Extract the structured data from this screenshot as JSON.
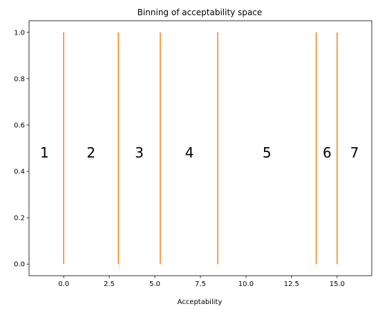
{
  "chart_data": {
    "type": "line",
    "title": "Binning of acceptability space",
    "xlabel": "Acceptability",
    "ylabel": "",
    "xlim": [
      -1.9,
      16.9
    ],
    "ylim": [
      -0.05,
      1.05
    ],
    "x_ticks": [
      0.0,
      2.5,
      5.0,
      7.5,
      10.0,
      12.5,
      15.0
    ],
    "x_tick_labels": [
      "0.0",
      "2.5",
      "5.0",
      "7.5",
      "10.0",
      "12.5",
      "15.0"
    ],
    "y_ticks": [
      0.0,
      0.2,
      0.4,
      0.6,
      0.8,
      1.0
    ],
    "y_tick_labels": [
      "0.0",
      "0.2",
      "0.4",
      "0.6",
      "0.8",
      "1.0"
    ],
    "grid": false,
    "line_color": "#ff7f0e",
    "boundaries": [
      {
        "x": 0.0,
        "y": [
          0,
          1
        ]
      },
      {
        "x": 3.0,
        "y": [
          0,
          1
        ]
      },
      {
        "x": 5.3,
        "y": [
          0,
          1
        ]
      },
      {
        "x": 8.45,
        "y": [
          0,
          1
        ]
      },
      {
        "x": 13.85,
        "y": [
          0,
          1
        ]
      },
      {
        "x": 15.0,
        "y": [
          0,
          1
        ]
      }
    ],
    "bin_labels": [
      {
        "text": "1",
        "x": -1.05,
        "y": 0.46
      },
      {
        "text": "2",
        "x": 1.5,
        "y": 0.46
      },
      {
        "text": "3",
        "x": 4.15,
        "y": 0.46
      },
      {
        "text": "4",
        "x": 6.9,
        "y": 0.46
      },
      {
        "text": "5",
        "x": 11.15,
        "y": 0.46
      },
      {
        "text": "6",
        "x": 14.45,
        "y": 0.46
      },
      {
        "text": "7",
        "x": 15.95,
        "y": 0.46
      }
    ]
  }
}
